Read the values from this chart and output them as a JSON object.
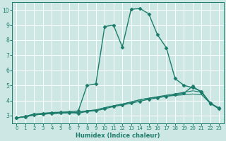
{
  "xlabel": "Humidex (Indice chaleur)",
  "background_color": "#cde8e4",
  "grid_color": "#ffffff",
  "line_color": "#1c7c6c",
  "xlim": [
    -0.5,
    23.5
  ],
  "ylim": [
    2.5,
    10.5
  ],
  "xticks": [
    0,
    1,
    2,
    3,
    4,
    5,
    6,
    7,
    8,
    9,
    10,
    11,
    12,
    13,
    14,
    15,
    16,
    17,
    18,
    19,
    20,
    21,
    22,
    23
  ],
  "yticks": [
    3,
    4,
    5,
    6,
    7,
    8,
    9,
    10
  ],
  "series": [
    {
      "x": [
        0,
        1,
        2,
        3,
        4,
        5,
        6,
        7,
        8,
        9,
        10,
        11,
        12,
        13,
        14,
        15,
        16,
        17,
        18,
        19,
        20,
        21,
        22,
        23
      ],
      "y": [
        2.85,
        2.95,
        3.1,
        3.15,
        3.2,
        3.22,
        3.25,
        3.3,
        5.0,
        5.1,
        8.9,
        9.0,
        7.55,
        10.05,
        10.1,
        9.75,
        8.35,
        7.5,
        5.45,
        5.0,
        4.85,
        4.6,
        3.8,
        3.5
      ],
      "marker": "D",
      "markersize": 2.5,
      "linewidth": 1.0,
      "color": "#1c7c6c"
    },
    {
      "x": [
        0,
        1,
        2,
        3,
        4,
        5,
        6,
        7,
        8,
        9,
        10,
        11,
        12,
        13,
        14,
        15,
        16,
        17,
        18,
        19,
        20,
        21,
        22,
        23
      ],
      "y": [
        2.85,
        2.92,
        3.05,
        3.1,
        3.15,
        3.18,
        3.2,
        3.15,
        3.28,
        3.32,
        3.45,
        3.6,
        3.7,
        3.82,
        3.95,
        4.08,
        4.18,
        4.28,
        4.38,
        4.48,
        4.95,
        4.52,
        3.82,
        3.47
      ],
      "marker": "D",
      "markersize": 2.5,
      "linewidth": 1.0,
      "color": "#1c7c6c"
    },
    {
      "x": [
        0,
        1,
        2,
        3,
        4,
        5,
        6,
        7,
        8,
        9,
        10,
        11,
        12,
        13,
        14,
        15,
        16,
        17,
        18,
        19,
        20,
        21,
        22,
        23
      ],
      "y": [
        2.85,
        2.92,
        3.04,
        3.09,
        3.13,
        3.16,
        3.19,
        3.22,
        3.32,
        3.37,
        3.52,
        3.65,
        3.76,
        3.9,
        4.05,
        4.15,
        4.25,
        4.35,
        4.44,
        4.54,
        4.64,
        4.55,
        3.84,
        3.45
      ],
      "marker": null,
      "linewidth": 0.8,
      "color": "#1c7c6c"
    },
    {
      "x": [
        0,
        1,
        2,
        3,
        4,
        5,
        6,
        7,
        8,
        9,
        10,
        11,
        12,
        13,
        14,
        15,
        16,
        17,
        18,
        19,
        20,
        21,
        22,
        23
      ],
      "y": [
        2.85,
        2.92,
        3.04,
        3.09,
        3.13,
        3.16,
        3.19,
        3.22,
        3.32,
        3.37,
        3.52,
        3.65,
        3.76,
        3.9,
        4.05,
        4.15,
        4.22,
        4.28,
        4.33,
        4.38,
        4.43,
        4.38,
        3.8,
        3.43
      ],
      "marker": null,
      "linewidth": 0.8,
      "color": "#1c7c6c"
    }
  ],
  "xlabel_fontsize": 6.0,
  "tick_fontsize_x": 5.0,
  "tick_fontsize_y": 5.5
}
